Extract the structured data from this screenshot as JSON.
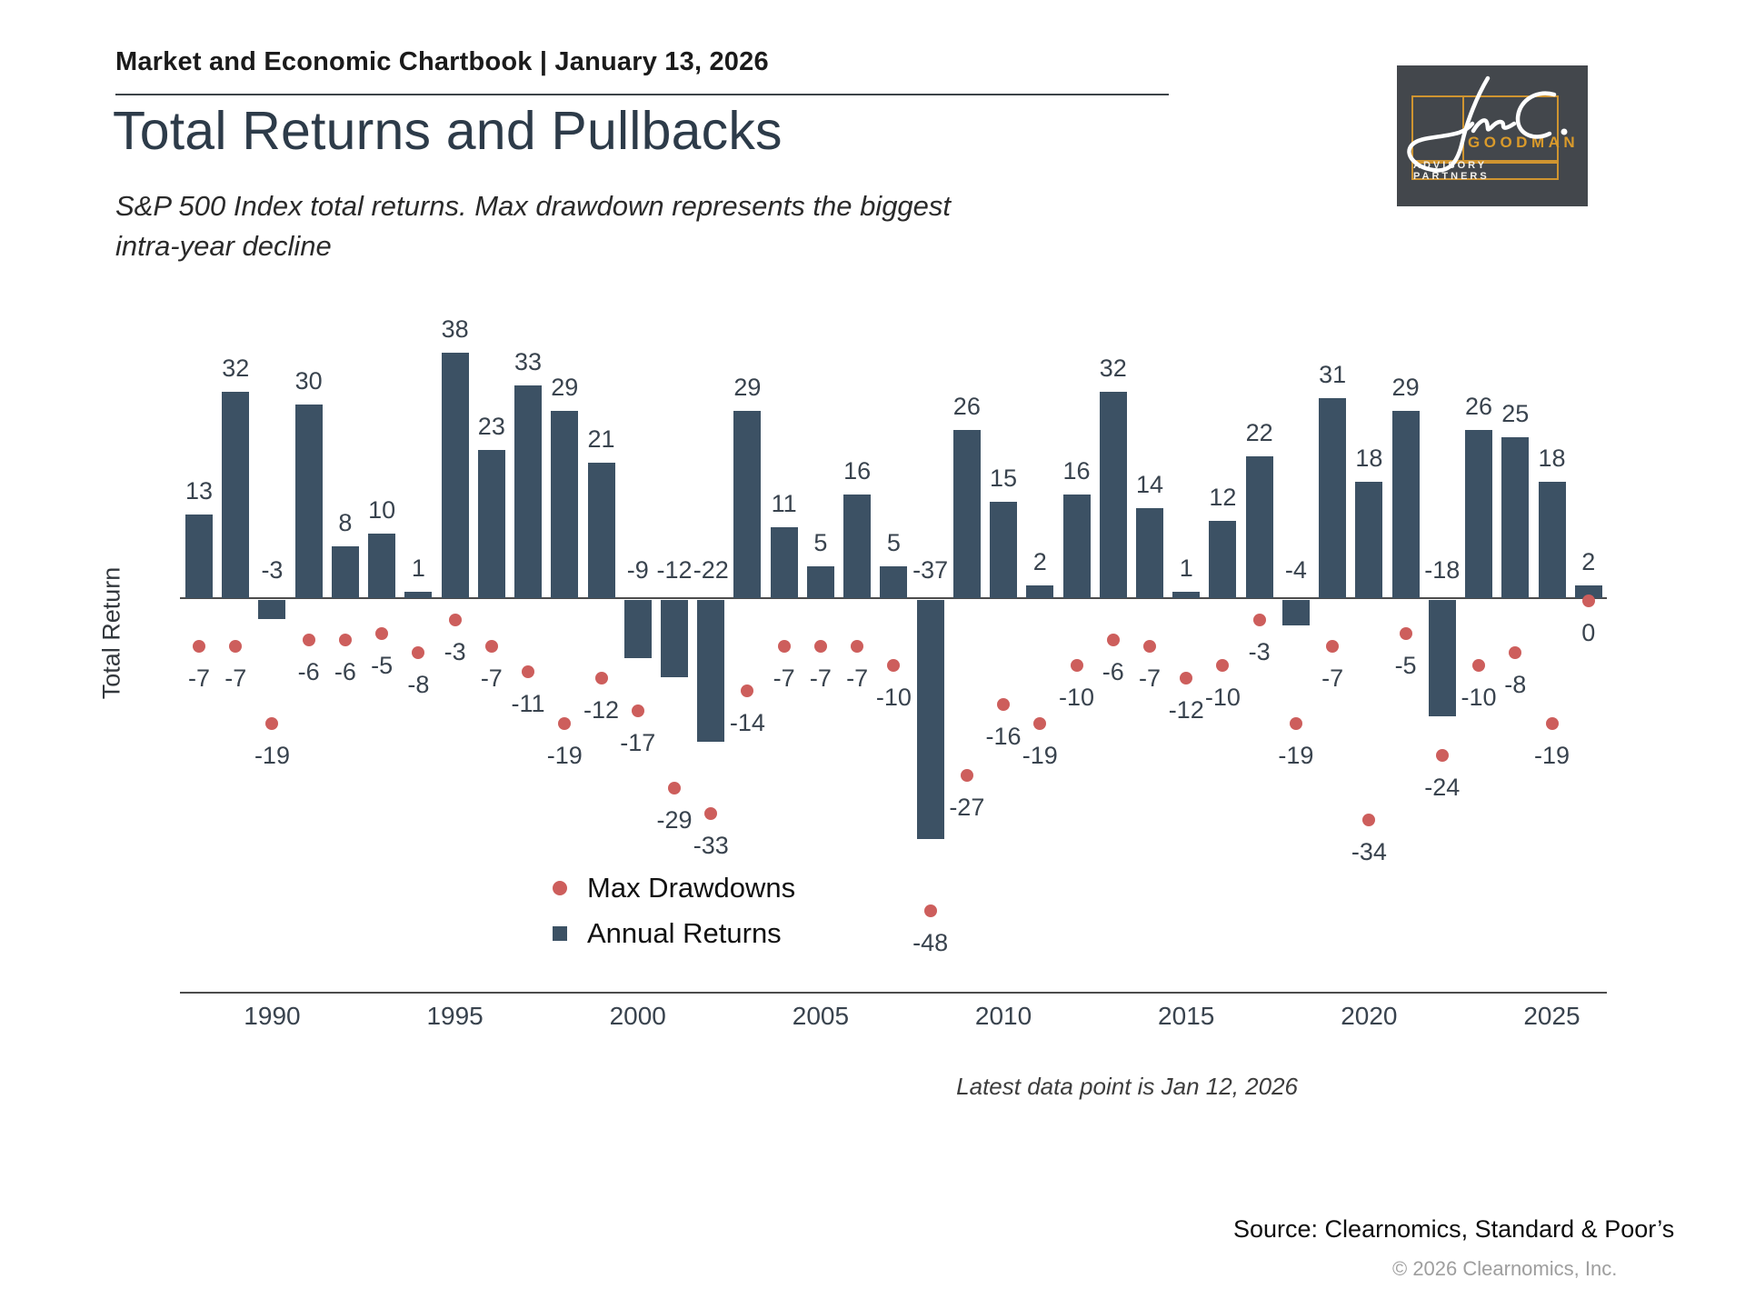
{
  "header": {
    "chartbook_label": "Market and Economic Chartbook | January 13, 2026"
  },
  "title": "Total Returns and Pullbacks",
  "subtitle_line1": "S&P 500 Index total returns. Max drawdown represents the biggest",
  "subtitle_line2": "intra-year decline",
  "logo": {
    "script_text": "Jon C.",
    "name": "GOODMAN",
    "tagline": "ADVISORY PARTNERS",
    "background_color": "#43474c",
    "gold_color": "#cf9430"
  },
  "chart_data": {
    "type": "bar",
    "title": "Total Returns and Pullbacks",
    "subtitle": "S&P 500 Index total returns. Max drawdown represents the biggest intra-year decline",
    "xlabel": "",
    "ylabel": "Total Return",
    "ylim": [
      -55,
      45
    ],
    "grid": false,
    "legend_position": "bottom-center",
    "x_ticks": [
      1990,
      1995,
      2000,
      2005,
      2010,
      2015,
      2020,
      2025
    ],
    "years": [
      1988,
      1989,
      1990,
      1991,
      1992,
      1993,
      1994,
      1995,
      1996,
      1997,
      1998,
      1999,
      2000,
      2001,
      2002,
      2003,
      2004,
      2005,
      2006,
      2007,
      2008,
      2009,
      2010,
      2011,
      2012,
      2013,
      2014,
      2015,
      2016,
      2017,
      2018,
      2019,
      2020,
      2021,
      2022,
      2023,
      2024,
      2025,
      2026
    ],
    "series": [
      {
        "name": "Annual Returns",
        "type": "bar",
        "color": "#3c5164",
        "values": [
          13,
          32,
          -3,
          30,
          8,
          10,
          1,
          38,
          23,
          33,
          29,
          21,
          -9,
          -12,
          -22,
          29,
          11,
          5,
          16,
          5,
          -37,
          26,
          15,
          2,
          16,
          32,
          14,
          1,
          12,
          22,
          -4,
          31,
          18,
          29,
          -18,
          26,
          25,
          18,
          2
        ]
      },
      {
        "name": "Max Drawdowns",
        "type": "scatter",
        "color": "#cd5e5c",
        "values": [
          -7,
          -7,
          -19,
          -6,
          -6,
          -5,
          -8,
          -3,
          -7,
          -11,
          -19,
          -12,
          -17,
          -29,
          -33,
          -14,
          -7,
          -7,
          -7,
          -10,
          -48,
          -27,
          -16,
          -19,
          -10,
          -6,
          -7,
          -12,
          -10,
          -3,
          -19,
          -7,
          -34,
          -5,
          -24,
          -10,
          -8,
          -19,
          0
        ]
      }
    ],
    "note": "Latest data point is Jan 12, 2026"
  },
  "footer": {
    "source": "Source: Clearnomics, Standard & Poor’s",
    "copyright": "© 2026 Clearnomics, Inc."
  }
}
